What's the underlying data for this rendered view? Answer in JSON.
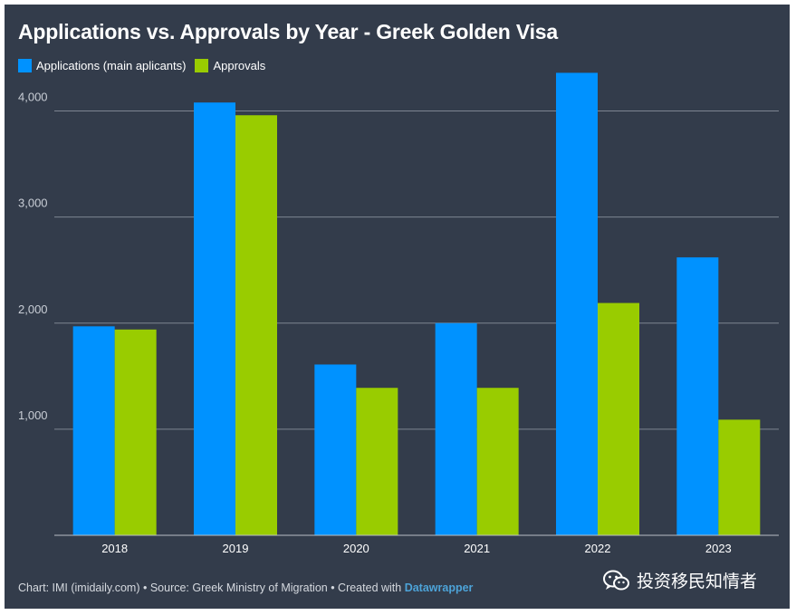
{
  "colors": {
    "background": "#333c4b",
    "applications": "#0092ff",
    "approvals": "#99cc00",
    "grid": "#7e8591",
    "tick_text": "#c9ced6"
  },
  "chart_data": {
    "type": "bar",
    "title": "Applications vs. Approvals by Year - Greek Golden Visa",
    "categories": [
      "2018",
      "2019",
      "2020",
      "2021",
      "2022",
      "2023"
    ],
    "series": [
      {
        "name": "Applications (main aplicants)",
        "values": [
          1970,
          4080,
          1610,
          2000,
          4360,
          2620
        ]
      },
      {
        "name": "Approvals",
        "values": [
          1940,
          3960,
          1390,
          1390,
          2190,
          1090
        ]
      }
    ],
    "y_ticks": [
      "1,000",
      "2,000",
      "3,000",
      "4,000"
    ],
    "ylim": [
      0,
      4500
    ],
    "grid": true,
    "legend": "top-left"
  },
  "footer": {
    "text": "Chart: IMI (imidaily.com) • Source: Greek Ministry of Migration • Created with ",
    "link": "Datawrapper"
  },
  "watermark": {
    "icon": "wechat-icon",
    "text": "投资移民知情者"
  }
}
